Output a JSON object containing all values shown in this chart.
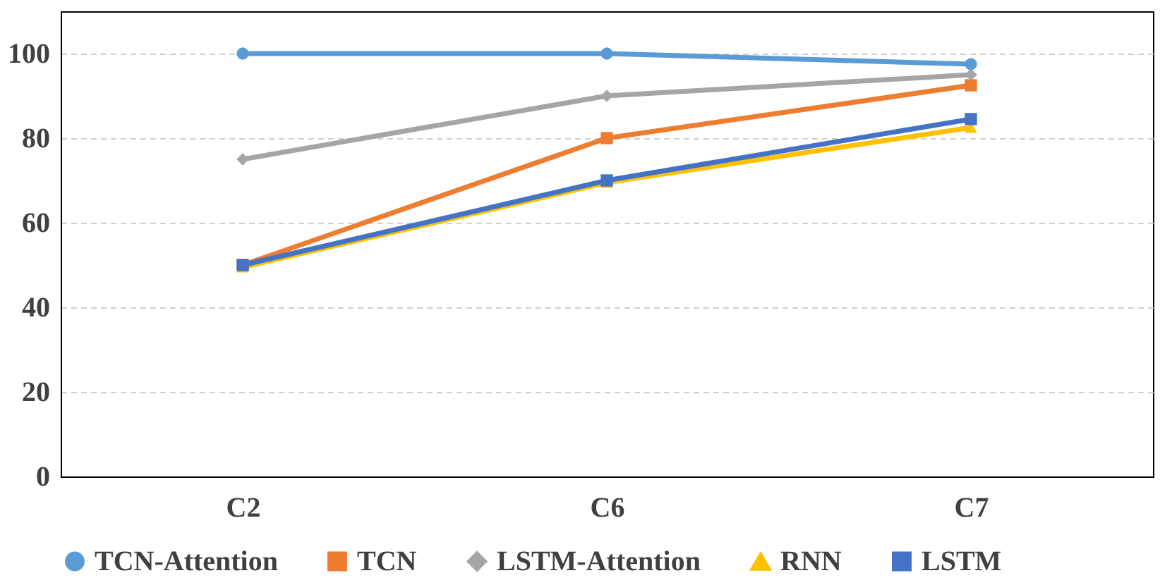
{
  "chart_data": {
    "type": "line",
    "categories": [
      "C2",
      "C6",
      "C7"
    ],
    "series": [
      {
        "name": "TCN-Attention",
        "color": "#5b9bd5",
        "marker": "circle",
        "values": [
          100,
          100,
          97.5
        ]
      },
      {
        "name": "TCN",
        "color": "#ed7d31",
        "marker": "square",
        "values": [
          50,
          80,
          92.5
        ]
      },
      {
        "name": "LSTM-Attention",
        "color": "#a5a5a5",
        "marker": "diamond",
        "values": [
          75,
          90,
          95
        ]
      },
      {
        "name": "RNN",
        "color": "#ffc000",
        "marker": "triangle",
        "values": [
          49.5,
          69.5,
          82.5
        ]
      },
      {
        "name": "LSTM",
        "color": "#4472c4",
        "marker": "square",
        "values": [
          50,
          70,
          84.5
        ]
      }
    ],
    "ylim": [
      0,
      110
    ],
    "yticks": [
      0,
      20,
      40,
      60,
      80,
      100
    ],
    "grid": "y",
    "legend": "bottom",
    "line_style": "solid"
  }
}
